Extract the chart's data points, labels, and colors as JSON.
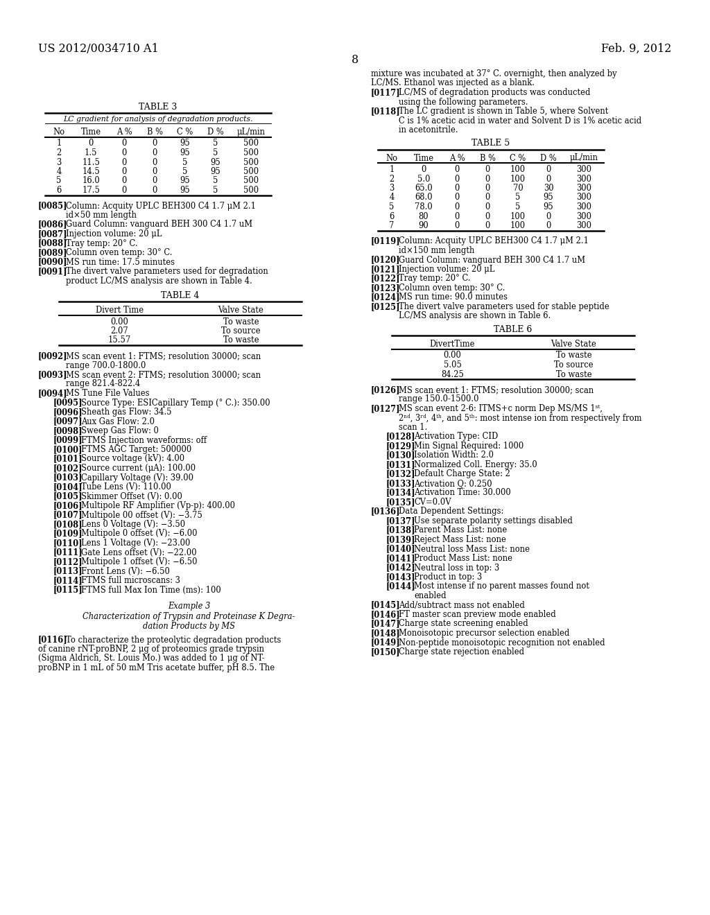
{
  "page_header_left": "US 2012/0034710 A1",
  "page_header_right": "Feb. 9, 2012",
  "page_number": "8",
  "bg_color": "#ffffff",
  "text_color": "#000000",
  "table3_title": "TABLE 3",
  "table3_subtitle": "LC gradient for analysis of degradation products.",
  "table3_headers": [
    "No",
    "Time",
    "A %",
    "B %",
    "C %",
    "D %",
    "μL/min"
  ],
  "table3_data": [
    [
      "1",
      "0",
      "0",
      "0",
      "95",
      "5",
      "500"
    ],
    [
      "2",
      "1.5",
      "0",
      "0",
      "95",
      "5",
      "500"
    ],
    [
      "3",
      "11.5",
      "0",
      "0",
      "5",
      "95",
      "500"
    ],
    [
      "4",
      "14.5",
      "0",
      "0",
      "5",
      "95",
      "500"
    ],
    [
      "5",
      "16.0",
      "0",
      "0",
      "95",
      "5",
      "500"
    ],
    [
      "6",
      "17.5",
      "0",
      "0",
      "95",
      "5",
      "500"
    ]
  ],
  "table4_title": "TABLE 4",
  "table4_headers": [
    "Divert Time",
    "Valve State"
  ],
  "table4_data": [
    [
      "0.00",
      "To waste"
    ],
    [
      "2.07",
      "To source"
    ],
    [
      "15.57",
      "To waste"
    ]
  ],
  "table5_title": "TABLE 5",
  "table5_headers": [
    "No",
    "Time",
    "A %",
    "B %",
    "C %",
    "D %",
    "μL/min"
  ],
  "table5_data": [
    [
      "1",
      "0",
      "0",
      "0",
      "100",
      "0",
      "300"
    ],
    [
      "2",
      "5.0",
      "0",
      "0",
      "100",
      "0",
      "300"
    ],
    [
      "3",
      "65.0",
      "0",
      "0",
      "70",
      "30",
      "300"
    ],
    [
      "4",
      "68.0",
      "0",
      "0",
      "5",
      "95",
      "300"
    ],
    [
      "5",
      "78.0",
      "0",
      "0",
      "5",
      "95",
      "300"
    ],
    [
      "6",
      "80",
      "0",
      "0",
      "100",
      "0",
      "300"
    ],
    [
      "7",
      "90",
      "0",
      "0",
      "100",
      "0",
      "300"
    ]
  ],
  "table6_title": "TABLE 6",
  "table6_headers": [
    "DivertTime",
    "Valve State"
  ],
  "table6_data": [
    [
      "0.00",
      "To waste"
    ],
    [
      "5.05",
      "To source"
    ],
    [
      "84.25",
      "To waste"
    ]
  ],
  "left_paragraphs": [
    {
      "tag": "[0085]",
      "lines": [
        "Column: Acquity UPLC BEH300 C4 1.7 μM 2.1",
        "id×50 mm length"
      ],
      "indent": false
    },
    {
      "tag": "[0086]",
      "lines": [
        "Guard Column: vanguard BEH 300 C4 1.7 uM"
      ],
      "indent": false
    },
    {
      "tag": "[0087]",
      "lines": [
        "Injection volume: 20 μL"
      ],
      "indent": false
    },
    {
      "tag": "[0088]",
      "lines": [
        "Tray temp: 20° C."
      ],
      "indent": false
    },
    {
      "tag": "[0089]",
      "lines": [
        "Column oven temp: 30° C."
      ],
      "indent": false
    },
    {
      "tag": "[0090]",
      "lines": [
        "MS run time: 17.5 minutes"
      ],
      "indent": false
    },
    {
      "tag": "[0091]",
      "lines": [
        "The divert valve parameters used for degradation",
        "product LC/MS analysis are shown in Table 4."
      ],
      "indent": false
    }
  ],
  "mid_paragraphs": [
    {
      "tag": "[0092]",
      "lines": [
        "MS scan event 1: FTMS; resolution 30000; scan",
        "range 700.0-1800.0"
      ],
      "indent": false
    },
    {
      "tag": "[0093]",
      "lines": [
        "MS scan event 2: FTMS; resolution 30000; scan",
        "range 821.4-822.4"
      ],
      "indent": false
    },
    {
      "tag": "[0094]",
      "lines": [
        "MS Tune File Values"
      ],
      "indent": false
    },
    {
      "tag": "[0095]",
      "lines": [
        "Source Type: ESICapillary Temp (° C.): 350.00"
      ],
      "indent": true
    },
    {
      "tag": "[0096]",
      "lines": [
        "Sheath gas Flow: 34.5"
      ],
      "indent": true
    },
    {
      "tag": "[0097]",
      "lines": [
        "Aux Gas Flow: 2.0"
      ],
      "indent": true
    },
    {
      "tag": "[0098]",
      "lines": [
        "Sweep Gas Flow: 0"
      ],
      "indent": true
    },
    {
      "tag": "[0099]",
      "lines": [
        "FTMS Injection waveforms: off"
      ],
      "indent": true
    },
    {
      "tag": "[0100]",
      "lines": [
        "FTMS AGC Target: 500000"
      ],
      "indent": true
    },
    {
      "tag": "[0101]",
      "lines": [
        "Source voltage (kV): 4.00"
      ],
      "indent": true
    },
    {
      "tag": "[0102]",
      "lines": [
        "Source current (μA): 100.00"
      ],
      "indent": true
    },
    {
      "tag": "[0103]",
      "lines": [
        "Capillary Voltage (V): 39.00"
      ],
      "indent": true
    },
    {
      "tag": "[0104]",
      "lines": [
        "Tube Lens (V): 110.00"
      ],
      "indent": true
    },
    {
      "tag": "[0105]",
      "lines": [
        "Skimmer Offset (V): 0.00"
      ],
      "indent": true
    },
    {
      "tag": "[0106]",
      "lines": [
        "Multipole RF Amplifier (Vp-p): 400.00"
      ],
      "indent": true
    },
    {
      "tag": "[0107]",
      "lines": [
        "Multipole 00 offset (V): −3.75"
      ],
      "indent": true
    },
    {
      "tag": "[0108]",
      "lines": [
        "Lens 0 Voltage (V): −3.50"
      ],
      "indent": true
    },
    {
      "tag": "[0109]",
      "lines": [
        "Multipole 0 offset (V): −6.00"
      ],
      "indent": true
    },
    {
      "tag": "[0110]",
      "lines": [
        "Lens 1 Voltage (V): −23.00"
      ],
      "indent": true
    },
    {
      "tag": "[0111]",
      "lines": [
        "Gate Lens offset (V): −22.00"
      ],
      "indent": true
    },
    {
      "tag": "[0112]",
      "lines": [
        "Multipole 1 offset (V): −6.50"
      ],
      "indent": true
    },
    {
      "tag": "[0113]",
      "lines": [
        "Front Lens (V): −6.50"
      ],
      "indent": true
    },
    {
      "tag": "[0114]",
      "lines": [
        "FTMS full microscans: 3"
      ],
      "indent": true
    },
    {
      "tag": "[0115]",
      "lines": [
        "FTMS full Max Ion Time (ms): 100"
      ],
      "indent": true
    }
  ],
  "example3_title": "Example 3",
  "example3_subtitle_line1": "Characterization of Trypsin and Proteinase K Degra-",
  "example3_subtitle_line2": "dation Products by MS",
  "para_0116_lines": [
    "[0116] To characterize the proteolytic degradation products",
    "of canine rNT-proBNP, 2 μg of proteomics grade trypsin",
    "(Sigma Aldrich, St. Louis Mo.) was added to 1 μg of NT-",
    "proBNP in 1 mL of 50 mM Tris acetate buffer, pH 8.5. The"
  ],
  "right_intro_lines": [
    "mixture was incubated at 37° C. overnight, then analyzed by",
    "LC/MS. Ethanol was injected as a blank."
  ],
  "right_paragraphs_pre_table5": [
    {
      "tag": "[0117]",
      "lines": [
        "LC/MS of degradation products was conducted",
        "using the following parameters."
      ],
      "indent": false
    },
    {
      "tag": "[0118]",
      "lines": [
        "The LC gradient is shown in Table 5, where Solvent",
        "C is 1% acetic acid in water and Solvent D is 1% acetic acid",
        "in acetonitrile."
      ],
      "indent": false
    }
  ],
  "right_paragraphs_119_125": [
    {
      "tag": "[0119]",
      "lines": [
        "Column: Acquity UPLC BEH300 C4 1.7 μM 2.1",
        "id×150 mm length"
      ],
      "indent": false
    },
    {
      "tag": "[0120]",
      "lines": [
        "Guard Column: vanguard BEH 300 C4 1.7 uM"
      ],
      "indent": false
    },
    {
      "tag": "[0121]",
      "lines": [
        "Injection volume: 20 μL"
      ],
      "indent": false
    },
    {
      "tag": "[0122]",
      "lines": [
        "Tray temp: 20° C."
      ],
      "indent": false
    },
    {
      "tag": "[0123]",
      "lines": [
        "Column oven temp: 30° C."
      ],
      "indent": false
    },
    {
      "tag": "[0124]",
      "lines": [
        "MS run time: 90.0 minutes"
      ],
      "indent": false
    },
    {
      "tag": "[0125]",
      "lines": [
        "The divert valve parameters used for stable peptide",
        "LC/MS analysis are shown in Table 6."
      ],
      "indent": false
    }
  ],
  "right_paragraphs_126plus": [
    {
      "tag": "[0126]",
      "lines": [
        "MS scan event 1: FTMS; resolution 30000; scan",
        "range 150.0-1500.0"
      ],
      "indent": false
    },
    {
      "tag": "[0127]",
      "lines": [
        "MS scan event 2-6: ITMS+c norm Dep MS/MS 1ˢᵗ,",
        "2ⁿᵈ, 3ʳᵈ, 4ᵗʰ, and 5ᵗʰ: most intense ion from respectively from",
        "scan 1."
      ],
      "indent": false
    },
    {
      "tag": "[0128]",
      "lines": [
        "Activation Type: CID"
      ],
      "indent": true
    },
    {
      "tag": "[0129]",
      "lines": [
        "Min Signal Required: 1000"
      ],
      "indent": true
    },
    {
      "tag": "[0130]",
      "lines": [
        "Isolation Width: 2.0"
      ],
      "indent": true
    },
    {
      "tag": "[0131]",
      "lines": [
        "Normalized Coll. Energy: 35.0"
      ],
      "indent": true
    },
    {
      "tag": "[0132]",
      "lines": [
        "Default Charge State: 2"
      ],
      "indent": true
    },
    {
      "tag": "[0133]",
      "lines": [
        "Activation Q: 0.250"
      ],
      "indent": true
    },
    {
      "tag": "[0134]",
      "lines": [
        "Activation Time: 30.000"
      ],
      "indent": true
    },
    {
      "tag": "[0135]",
      "lines": [
        "CV=0.0V"
      ],
      "indent": true
    },
    {
      "tag": "[0136]",
      "lines": [
        "Data Dependent Settings:"
      ],
      "indent": false
    },
    {
      "tag": "[0137]",
      "lines": [
        "Use separate polarity settings disabled"
      ],
      "indent": true
    },
    {
      "tag": "[0138]",
      "lines": [
        "Parent Mass List: none"
      ],
      "indent": true
    },
    {
      "tag": "[0139]",
      "lines": [
        "Reject Mass List: none"
      ],
      "indent": true
    },
    {
      "tag": "[0140]",
      "lines": [
        "Neutral loss Mass List: none"
      ],
      "indent": true
    },
    {
      "tag": "[0141]",
      "lines": [
        "Product Mass List: none"
      ],
      "indent": true
    },
    {
      "tag": "[0142]",
      "lines": [
        "Neutral loss in top: 3"
      ],
      "indent": true
    },
    {
      "tag": "[0143]",
      "lines": [
        "Product in top: 3"
      ],
      "indent": true
    },
    {
      "tag": "[0144]",
      "lines": [
        "Most intense if no parent masses found not",
        "enabled"
      ],
      "indent": true
    },
    {
      "tag": "[0145]",
      "lines": [
        "Add/subtract mass not enabled"
      ],
      "indent": false
    },
    {
      "tag": "[0146]",
      "lines": [
        "FT master scan preview mode enabled"
      ],
      "indent": false
    },
    {
      "tag": "[0147]",
      "lines": [
        "Charge state screening enabled"
      ],
      "indent": false
    },
    {
      "tag": "[0148]",
      "lines": [
        "Monoisotopic precursor selection enabled"
      ],
      "indent": false
    },
    {
      "tag": "[0149]",
      "lines": [
        "Non-peptide monoisotopic recognition not enabled"
      ],
      "indent": false
    },
    {
      "tag": "[0150]",
      "lines": [
        "Charge state rejection enabled"
      ],
      "indent": false
    }
  ]
}
